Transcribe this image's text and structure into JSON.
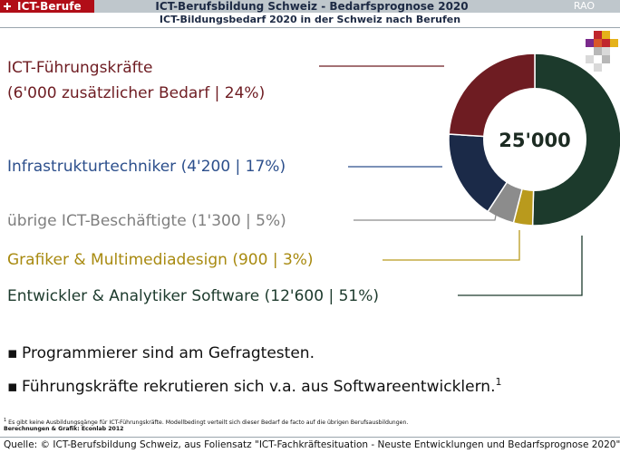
{
  "header": {
    "brand": "ICT-Berufe",
    "title": "ICT-Berufsbildung Schweiz - Bedarfsprognose 2020",
    "tag": "RAO",
    "subtitle": "ICT-Bildungsbedarf 2020 in der Schweiz nach Berufen"
  },
  "chart_data": {
    "type": "donut",
    "title": "ICT-Bildungsbedarf 2020 in der Schweiz nach Berufen",
    "center_label": "25'000",
    "total": 25000,
    "series": [
      {
        "name": "Entwickler & Analytiker Software",
        "value": 12600,
        "percent": 51,
        "color": "#1c3a2c",
        "label": "Entwickler & Analytiker Software (12'600 | 51%)"
      },
      {
        "name": "Grafiker & Multimediadesign",
        "value": 900,
        "percent": 3,
        "color": "#b99a1d",
        "label": "Grafiker & Multimediadesign (900 | 3%)"
      },
      {
        "name": "übrige ICT-Beschäftigte",
        "value": 1300,
        "percent": 5,
        "color": "#8c8c8c",
        "label": "übrige ICT-Beschäftigte (1'300 | 5%)"
      },
      {
        "name": "Infrastrukturtechniker",
        "value": 4200,
        "percent": 17,
        "color": "#1b2a48",
        "label": "Infrastrukturtechniker (4'200 | 17%)"
      },
      {
        "name": "ICT-Führungskräfte",
        "value": 6000,
        "percent": 24,
        "color": "#6e1c22",
        "label_line1": "ICT-Führungskräfte",
        "label_line2": "(6'000 zusätzlicher Bedarf | 24%)"
      }
    ],
    "label_colors": {
      "fuehrung": "#6e1c22",
      "infra": "#2c4f8c",
      "uebrige": "#7f7f7f",
      "grafik": "#a88a10",
      "entwickler": "#1c3a2c"
    }
  },
  "bullets": [
    {
      "text": "Programmierer sind am Gefragtesten.",
      "sup": ""
    },
    {
      "text": "Führungskräfte rekrutieren sich v.a. aus Softwareentwicklern.",
      "sup": "1"
    }
  ],
  "footnote": {
    "mark": "1",
    "text": "Es gibt keine Ausbildungsgänge für ICT-Führungskräfte. Modellbedingt verteilt sich dieser Bedarf de facto auf die übrigen Berufsausbildungen.",
    "credit": "Berechnungen & Grafik: Econlab 2012"
  },
  "source": "Quelle: © ICT-Berufsbildung Schweiz, aus Foliensatz \"ICT-Fachkräftesituation - Neuste Entwicklungen und Bedarfsprognose 2020\""
}
